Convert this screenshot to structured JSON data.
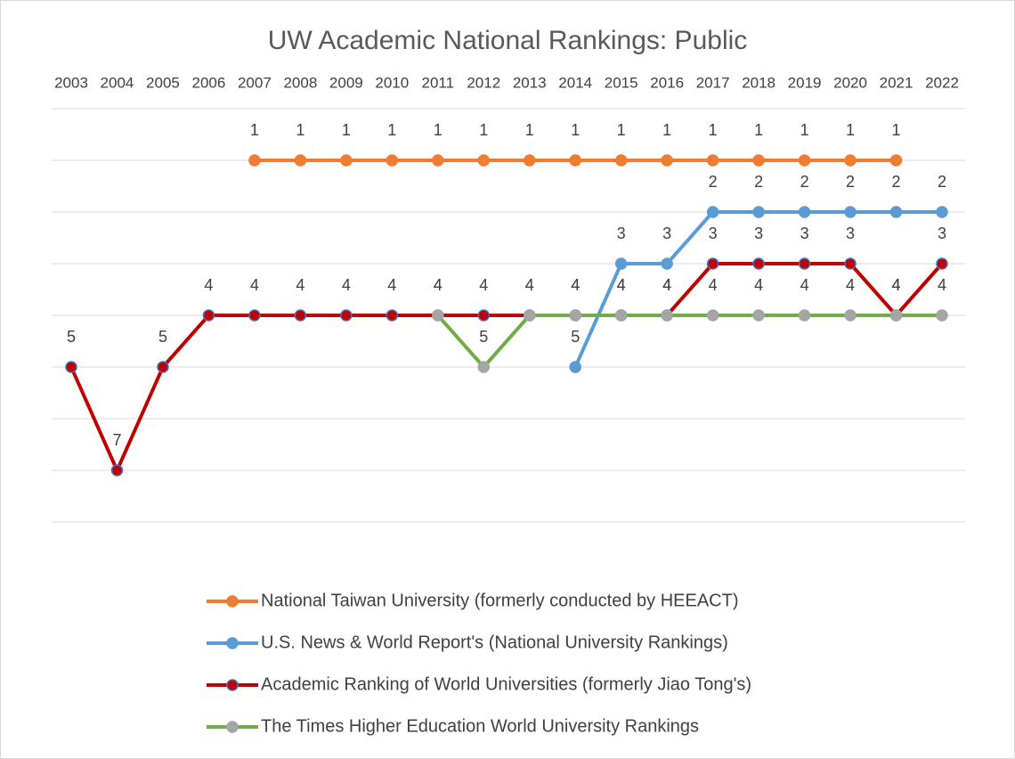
{
  "chart_data": {
    "type": "line",
    "title": "UW Academic National Rankings: Public",
    "categories": [
      "2003",
      "2004",
      "2005",
      "2006",
      "2007",
      "2008",
      "2009",
      "2010",
      "2011",
      "2012",
      "2013",
      "2014",
      "2015",
      "2016",
      "2017",
      "2018",
      "2019",
      "2020",
      "2021",
      "2022"
    ],
    "ylim": [
      8,
      0
    ],
    "yticks": [
      0,
      1,
      2,
      3,
      4,
      5,
      6,
      7,
      8
    ],
    "grid": true,
    "legend": "bottom",
    "series": [
      {
        "name": "National Taiwan University (formerly conducted by HEEACT)",
        "color": "#ed7d31",
        "marker_color": "#ed7d31",
        "marker_edge_color": "#ed7d31",
        "values": [
          null,
          null,
          null,
          null,
          1,
          1,
          1,
          1,
          1,
          1,
          1,
          1,
          1,
          1,
          1,
          1,
          1,
          1,
          1,
          null
        ]
      },
      {
        "name": "U.S. News & World Report's (National University Rankings)",
        "color": "#5b9bd5",
        "marker_color": "#5b9bd5",
        "marker_edge_color": "#5b9bd5",
        "values": [
          null,
          null,
          null,
          null,
          null,
          null,
          null,
          null,
          null,
          null,
          null,
          5,
          3,
          3,
          2,
          2,
          2,
          2,
          2,
          2
        ]
      },
      {
        "name": "Academic Ranking of World Universities (formerly Jiao Tong's)",
        "color": "#c00000",
        "marker_color": "#c00000",
        "marker_edge_color": "#4472c4",
        "values": [
          5,
          7,
          5,
          4,
          4,
          4,
          4,
          4,
          4,
          4,
          4,
          4,
          4,
          4,
          3,
          3,
          3,
          3,
          4,
          3
        ]
      },
      {
        "name": "The Times Higher Education World University Rankings",
        "color": "#70ad47",
        "marker_color": "#a5a5a5",
        "marker_edge_color": "#a5a5a5",
        "values": [
          null,
          null,
          null,
          null,
          null,
          null,
          null,
          null,
          4,
          5,
          4,
          4,
          4,
          4,
          4,
          4,
          4,
          4,
          4,
          4
        ]
      }
    ]
  }
}
